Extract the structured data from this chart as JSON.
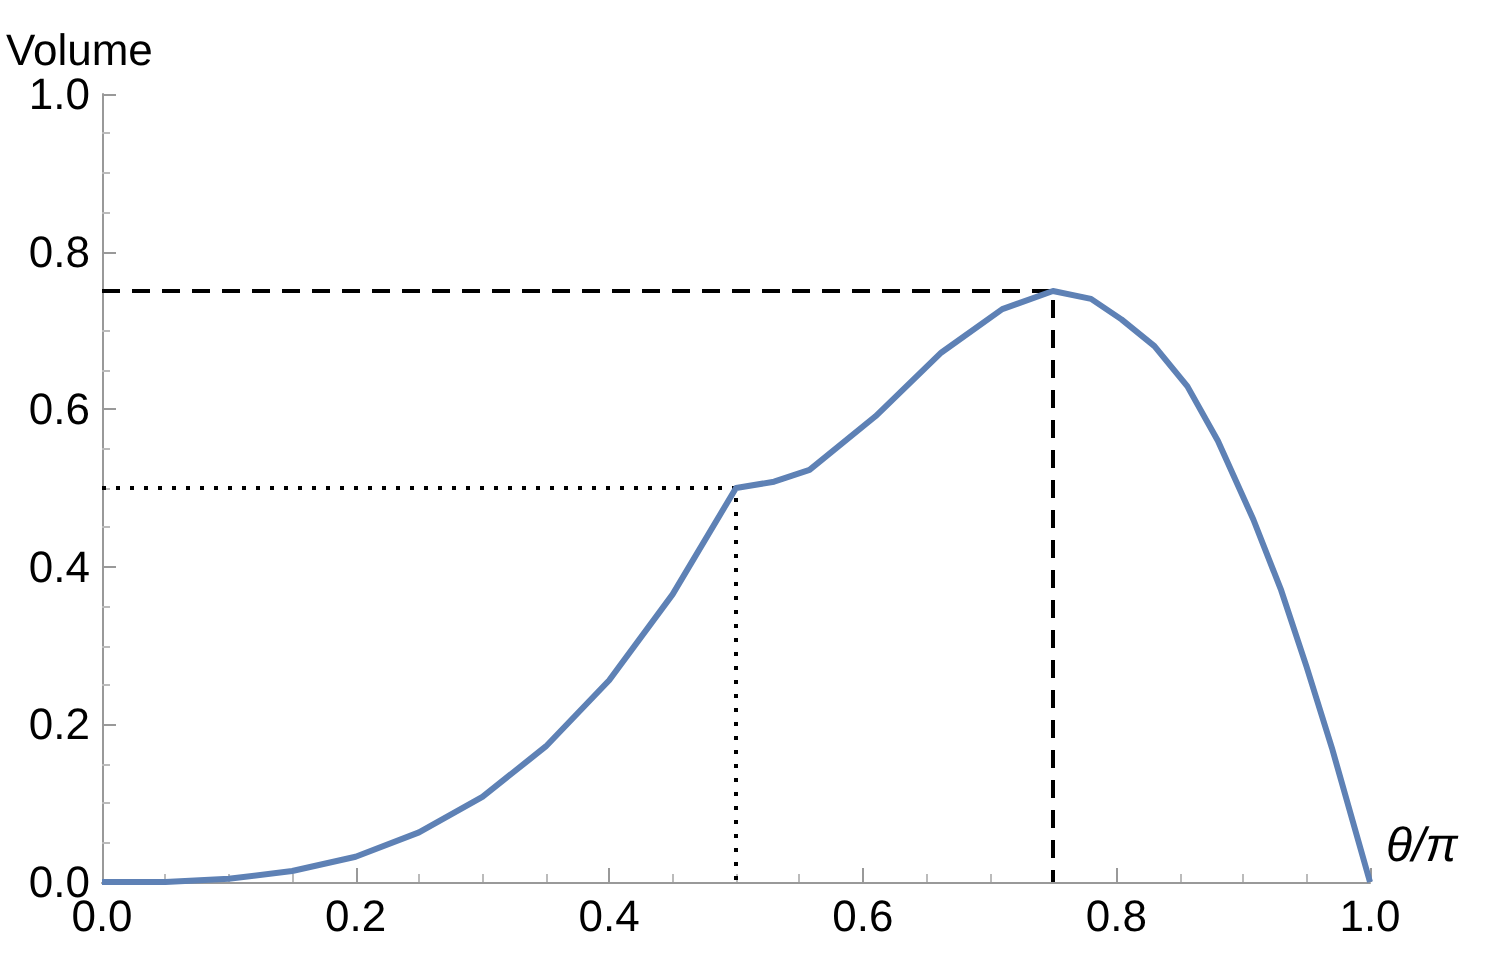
{
  "chart_data": {
    "type": "line",
    "xlabel": "θ/π",
    "ylabel": "Volume",
    "xlim": [
      0,
      1
    ],
    "ylim": [
      0,
      1
    ],
    "xticks": [
      {
        "value": 0,
        "label": "0.0"
      },
      {
        "value": 0.2,
        "label": "0.2"
      },
      {
        "value": 0.4,
        "label": "0.4"
      },
      {
        "value": 0.6,
        "label": "0.6"
      },
      {
        "value": 0.8,
        "label": "0.8"
      },
      {
        "value": 1,
        "label": "1.0"
      }
    ],
    "yticks": [
      {
        "value": 0,
        "label": "0.0"
      },
      {
        "value": 0.2,
        "label": "0.2"
      },
      {
        "value": 0.4,
        "label": "0.4"
      },
      {
        "value": 0.6,
        "label": "0.6"
      },
      {
        "value": 0.8,
        "label": "0.8"
      },
      {
        "value": 1,
        "label": "1.0"
      }
    ],
    "marker": "none",
    "series": [
      {
        "color": "#5e81b5",
        "line_style": "solid",
        "x": [
          0,
          0.05,
          0.1,
          0.15,
          0.2,
          0.25,
          0.3,
          0.35,
          0.4,
          0.45,
          0.5,
          0.53,
          0.558,
          0.61,
          0.662,
          0.71,
          0.75,
          0.78,
          0.804,
          0.83,
          0.856,
          0.88,
          0.908,
          0.93,
          0.95,
          0.97,
          1.0
        ],
        "values": [
          0,
          0,
          0.004,
          0.014,
          0.032,
          0.063,
          0.108,
          0.172,
          0.256,
          0.365,
          0.5,
          0.508,
          0.523,
          0.591,
          0.672,
          0.727,
          0.75,
          0.74,
          0.714,
          0.68,
          0.629,
          0.56,
          0.46,
          0.37,
          0.273,
          0.17,
          0
        ]
      },
      {
        "type": "line",
        "color": "#000000",
        "line_style": "dotted",
        "x": [
          0,
          0.5,
          0.5
        ],
        "values": [
          0.5,
          0.5,
          0
        ]
      },
      {
        "type": "line",
        "color": "#000000",
        "line_style": "dashed",
        "x": [
          0,
          0.75,
          0.75
        ],
        "values": [
          0.75,
          0.75,
          0
        ]
      }
    ]
  }
}
